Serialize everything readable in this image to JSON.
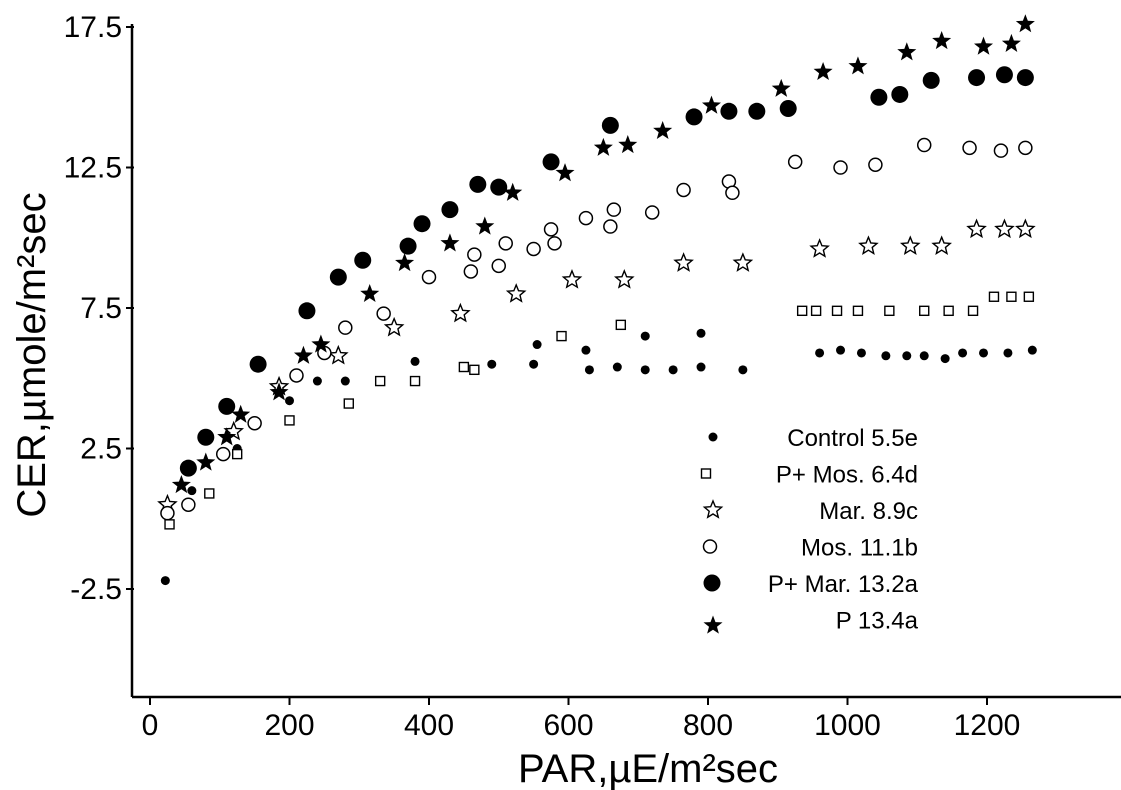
{
  "chart_data": {
    "type": "scatter",
    "xlabel": "PAR,µE/m²sec",
    "ylabel": "CER,µmole/m²sec",
    "xlim": [
      -20,
      1350
    ],
    "ylim": [
      -6.5,
      17.5
    ],
    "x_ticks": [
      0,
      200,
      400,
      600,
      800,
      1000,
      1200
    ],
    "y_ticks": [
      -2.5,
      2.5,
      7.5,
      12.5,
      17.5
    ],
    "y_tick_labels": [
      "-2.5",
      "2.5",
      "7.5",
      "12.5",
      "17.5"
    ],
    "grid": false,
    "legend_position": "right",
    "series": [
      {
        "name": "Control  5.5e",
        "marker": "small-filled-circle",
        "points": [
          [
            22,
            -2.2
          ],
          [
            60,
            1.0
          ],
          [
            125,
            2.5
          ],
          [
            200,
            4.2
          ],
          [
            240,
            4.9
          ],
          [
            280,
            4.9
          ],
          [
            380,
            5.6
          ],
          [
            490,
            5.5
          ],
          [
            550,
            5.5
          ],
          [
            555,
            6.2
          ],
          [
            625,
            6.0
          ],
          [
            630,
            5.3
          ],
          [
            670,
            5.4
          ],
          [
            710,
            5.3
          ],
          [
            710,
            6.5
          ],
          [
            750,
            5.3
          ],
          [
            790,
            5.4
          ],
          [
            790,
            6.6
          ],
          [
            850,
            5.3
          ],
          [
            960,
            5.9
          ],
          [
            990,
            6.0
          ],
          [
            1020,
            5.9
          ],
          [
            1055,
            5.8
          ],
          [
            1085,
            5.8
          ],
          [
            1110,
            5.8
          ],
          [
            1140,
            5.7
          ],
          [
            1165,
            5.9
          ],
          [
            1195,
            5.9
          ],
          [
            1230,
            5.9
          ],
          [
            1265,
            6.0
          ]
        ]
      },
      {
        "name": "P+ Mos.  6.4d",
        "marker": "open-square",
        "points": [
          [
            28,
            -0.2
          ],
          [
            85,
            0.9
          ],
          [
            125,
            2.3
          ],
          [
            200,
            3.5
          ],
          [
            285,
            4.1
          ],
          [
            330,
            4.9
          ],
          [
            380,
            4.9
          ],
          [
            450,
            5.4
          ],
          [
            465,
            5.3
          ],
          [
            590,
            6.5
          ],
          [
            675,
            6.9
          ],
          [
            935,
            7.4
          ],
          [
            955,
            7.4
          ],
          [
            985,
            7.4
          ],
          [
            1015,
            7.4
          ],
          [
            1060,
            7.4
          ],
          [
            1110,
            7.4
          ],
          [
            1145,
            7.4
          ],
          [
            1180,
            7.4
          ],
          [
            1210,
            7.9
          ],
          [
            1235,
            7.9
          ],
          [
            1260,
            7.9
          ]
        ]
      },
      {
        "name": "Mar.  8.9c",
        "marker": "open-star",
        "points": [
          [
            25,
            0.5
          ],
          [
            120,
            3.1
          ],
          [
            185,
            4.7
          ],
          [
            270,
            5.8
          ],
          [
            350,
            6.8
          ],
          [
            445,
            7.3
          ],
          [
            525,
            8.0
          ],
          [
            605,
            8.5
          ],
          [
            680,
            8.5
          ],
          [
            765,
            9.1
          ],
          [
            850,
            9.1
          ],
          [
            960,
            9.6
          ],
          [
            1030,
            9.7
          ],
          [
            1090,
            9.7
          ],
          [
            1135,
            9.7
          ],
          [
            1185,
            10.3
          ],
          [
            1225,
            10.3
          ],
          [
            1255,
            10.3
          ]
        ]
      },
      {
        "name": "Mos.  11.1b",
        "marker": "open-circle",
        "points": [
          [
            25,
            0.2
          ],
          [
            55,
            0.5
          ],
          [
            105,
            2.3
          ],
          [
            150,
            3.4
          ],
          [
            210,
            5.1
          ],
          [
            250,
            5.9
          ],
          [
            280,
            6.8
          ],
          [
            335,
            7.3
          ],
          [
            400,
            8.6
          ],
          [
            460,
            8.8
          ],
          [
            465,
            9.4
          ],
          [
            500,
            9.0
          ],
          [
            510,
            9.8
          ],
          [
            550,
            9.6
          ],
          [
            575,
            10.3
          ],
          [
            580,
            9.8
          ],
          [
            625,
            10.7
          ],
          [
            660,
            10.4
          ],
          [
            665,
            11.0
          ],
          [
            720,
            10.9
          ],
          [
            765,
            11.7
          ],
          [
            830,
            12.0
          ],
          [
            835,
            11.6
          ],
          [
            925,
            12.7
          ],
          [
            990,
            12.5
          ],
          [
            1040,
            12.6
          ],
          [
            1110,
            13.3
          ],
          [
            1175,
            13.2
          ],
          [
            1220,
            13.1
          ],
          [
            1255,
            13.2
          ]
        ]
      },
      {
        "name": "P+ Mar.  13.2a",
        "marker": "large-filled-circle",
        "points": [
          [
            55,
            1.8
          ],
          [
            80,
            2.9
          ],
          [
            110,
            4.0
          ],
          [
            155,
            5.5
          ],
          [
            225,
            7.4
          ],
          [
            270,
            8.6
          ],
          [
            305,
            9.2
          ],
          [
            370,
            9.7
          ],
          [
            390,
            10.5
          ],
          [
            430,
            11.0
          ],
          [
            470,
            11.9
          ],
          [
            500,
            11.8
          ],
          [
            575,
            12.7
          ],
          [
            660,
            14.0
          ],
          [
            780,
            14.3
          ],
          [
            830,
            14.5
          ],
          [
            870,
            14.5
          ],
          [
            915,
            14.6
          ],
          [
            1045,
            15.0
          ],
          [
            1075,
            15.1
          ],
          [
            1120,
            15.6
          ],
          [
            1185,
            15.7
          ],
          [
            1225,
            15.8
          ],
          [
            1255,
            15.7
          ]
        ]
      },
      {
        "name": "P  13.4a",
        "marker": "filled-star",
        "points": [
          [
            45,
            1.2
          ],
          [
            80,
            2.0
          ],
          [
            110,
            2.9
          ],
          [
            130,
            3.7
          ],
          [
            185,
            4.5
          ],
          [
            220,
            5.8
          ],
          [
            245,
            6.2
          ],
          [
            315,
            8.0
          ],
          [
            365,
            9.1
          ],
          [
            430,
            9.8
          ],
          [
            480,
            10.4
          ],
          [
            520,
            11.6
          ],
          [
            595,
            12.3
          ],
          [
            650,
            13.2
          ],
          [
            685,
            13.3
          ],
          [
            735,
            13.8
          ],
          [
            805,
            14.7
          ],
          [
            905,
            15.3
          ],
          [
            965,
            15.9
          ],
          [
            1015,
            16.1
          ],
          [
            1085,
            16.6
          ],
          [
            1135,
            17.0
          ],
          [
            1195,
            16.8
          ],
          [
            1235,
            16.9
          ],
          [
            1255,
            17.6
          ]
        ]
      }
    ]
  }
}
